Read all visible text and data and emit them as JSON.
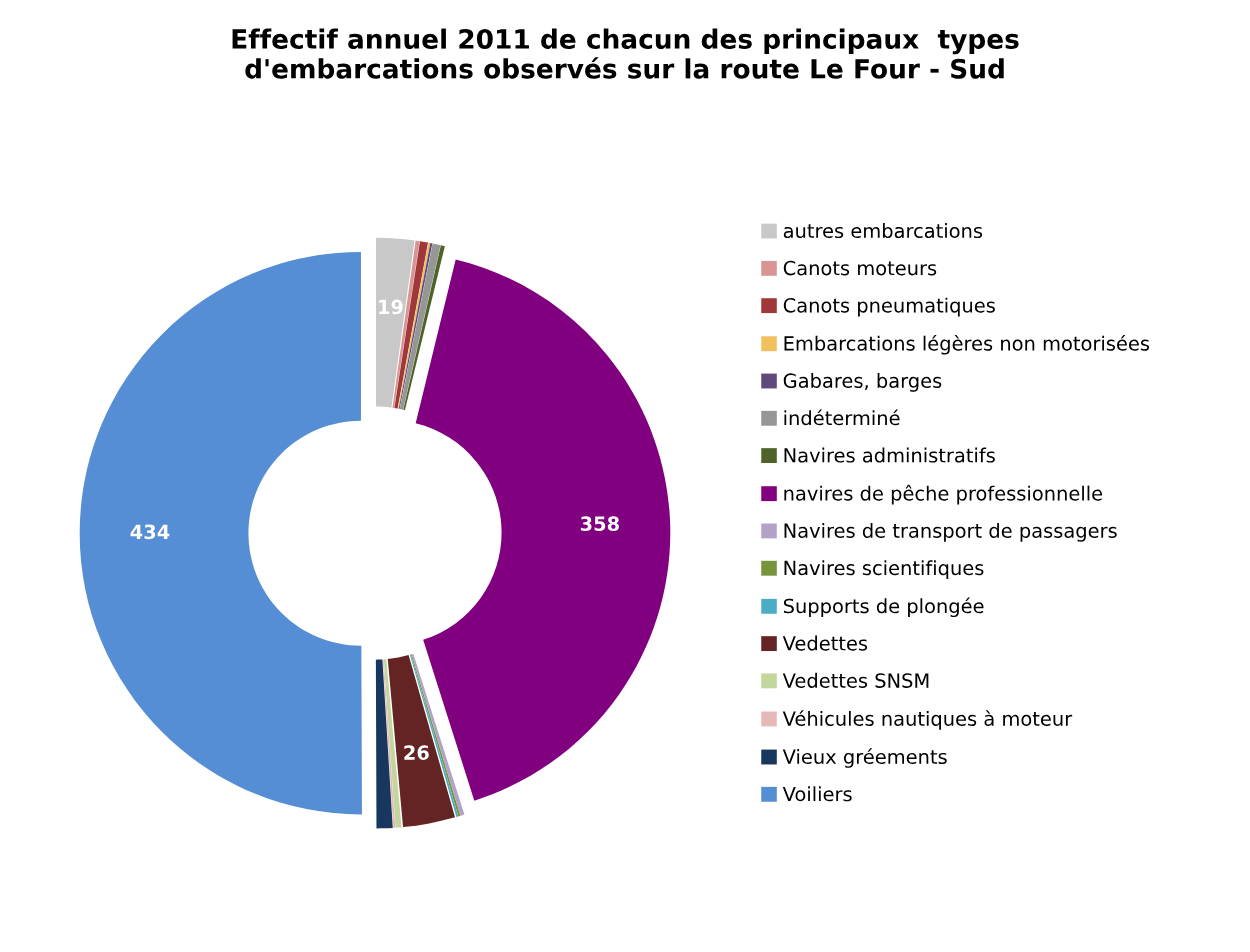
{
  "chart_data": {
    "type": "donut",
    "title": "Effectif annuel 2011 de chacun des principaux  types\nd'embarcations observés sur la route Le Four - Sud",
    "categories": [
      "autres embarcations",
      "Canots moteurs",
      "Canots pneumatiques",
      "Embarcations légères non motorisées",
      "Gabares, barges",
      "indéterminé",
      "Navires administratifs",
      "navires de pêche professionnelle",
      "Navires de transport de passagers",
      "Navires scientifiques",
      "Supports de plongée",
      "Vedettes",
      "Vedettes SNSM",
      "Véhicules nautiques à moteur",
      "Vieux gréements",
      "Voiliers"
    ],
    "values": [
      19,
      2,
      4,
      1,
      1,
      4,
      2,
      358,
      2,
      1,
      1,
      26,
      3,
      1,
      8,
      434
    ],
    "value_labels": [
      "19",
      null,
      null,
      null,
      null,
      null,
      null,
      "358",
      null,
      null,
      null,
      "26",
      null,
      null,
      null,
      "434"
    ],
    "colors": [
      "#c8c8c8",
      "#d99594",
      "#a0383a",
      "#f2c05c",
      "#604a7b",
      "#969696",
      "#4f6228",
      "#800080",
      "#b3a2c7",
      "#77933c",
      "#4bacc6",
      "#632423",
      "#c3d69b",
      "#e6b9b8",
      "#17375e",
      "#558ed5"
    ],
    "legend": "right"
  }
}
